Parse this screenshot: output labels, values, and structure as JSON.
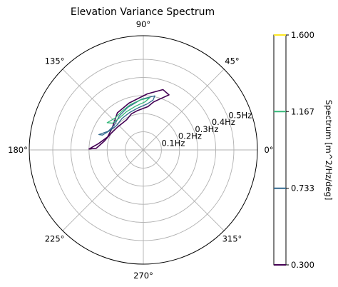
{
  "chart_data": {
    "type": "polar-contour",
    "title": "Elevation Variance Spectrum",
    "angle_ticks": [
      "0°",
      "45°",
      "90°",
      "135°",
      "180°",
      "225°",
      "270°",
      "315°"
    ],
    "angle_tick_degrees": [
      0,
      45,
      90,
      135,
      180,
      225,
      270,
      315
    ],
    "radial_ticks": [
      "0.1Hz",
      "0.2Hz",
      "0.3Hz",
      "0.4Hz",
      "0.5Hz"
    ],
    "radial_tick_values": [
      0.1,
      0.2,
      0.3,
      0.4,
      0.5
    ],
    "rlim": [
      0,
      0.63
    ],
    "grid": true,
    "colorbar": {
      "label": "Spectrum [m^2/Hz/deg]",
      "ticks": [
        "0.300",
        "0.733",
        "1.167",
        "1.600"
      ],
      "tick_values": [
        0.3,
        0.733,
        1.167,
        1.6
      ],
      "range": [
        0.3,
        1.6
      ],
      "colors": [
        "#440154",
        "#31688e",
        "#35b779",
        "#fde725"
      ]
    },
    "contours": [
      {
        "level": 0.3,
        "color": "#440154",
        "outline": [
          [
            0.3,
            179
          ],
          [
            0.25,
            172
          ],
          [
            0.21,
            160
          ],
          [
            0.21,
            145
          ],
          [
            0.25,
            125
          ],
          [
            0.27,
            107
          ],
          [
            0.31,
            86
          ],
          [
            0.35,
            72
          ],
          [
            0.335,
            65
          ],
          [
            0.295,
            72
          ],
          [
            0.27,
            78
          ],
          [
            0.24,
            84
          ],
          [
            0.22,
            98
          ],
          [
            0.21,
            108
          ],
          [
            0.19,
            119
          ],
          [
            0.19,
            138
          ],
          [
            0.2,
            153
          ],
          [
            0.22,
            167
          ],
          [
            0.26,
            178
          ]
        ]
      },
      {
        "level": 0.733,
        "color": "#31688e",
        "outline": [
          [
            0.26,
            161
          ],
          [
            0.22,
            152
          ],
          [
            0.21,
            140
          ],
          [
            0.23,
            125
          ],
          [
            0.25,
            110
          ],
          [
            0.28,
            92
          ],
          [
            0.305,
            78
          ],
          [
            0.28,
            79
          ],
          [
            0.255,
            85
          ],
          [
            0.235,
            96
          ],
          [
            0.22,
            110
          ],
          [
            0.21,
            124
          ],
          [
            0.2,
            138
          ],
          [
            0.215,
            151
          ],
          [
            0.24,
            160
          ]
        ]
      },
      {
        "level": 1.167,
        "color": "#35b779",
        "outline": [
          [
            0.25,
            143
          ],
          [
            0.235,
            132
          ],
          [
            0.245,
            118
          ],
          [
            0.26,
            106
          ],
          [
            0.275,
            94
          ],
          [
            0.29,
            83
          ],
          [
            0.265,
            88
          ],
          [
            0.245,
            100
          ],
          [
            0.23,
            114
          ],
          [
            0.22,
            128
          ],
          [
            0.225,
            139
          ]
        ]
      }
    ]
  }
}
